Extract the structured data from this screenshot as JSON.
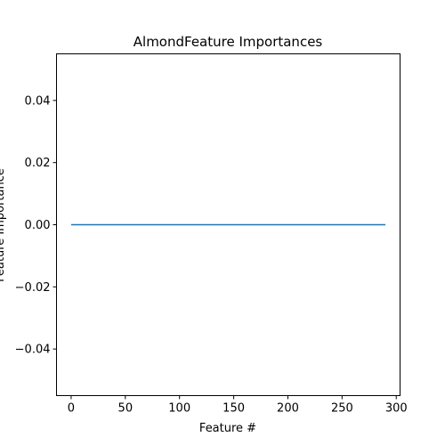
{
  "chart_data": {
    "type": "line",
    "title": "AlmondFeature Importances",
    "xlabel": "Feature #",
    "ylabel": "Feature Importance",
    "xlim": [
      -13.5,
      303.5
    ],
    "ylim": [
      -0.055,
      0.055
    ],
    "xticks": [
      0,
      50,
      100,
      150,
      200,
      250,
      300
    ],
    "yticks": [
      -0.04,
      -0.02,
      0.0,
      0.02,
      0.04
    ],
    "xtick_labels": [
      "0",
      "50",
      "100",
      "150",
      "200",
      "250",
      "300"
    ],
    "ytick_labels": [
      "−0.04",
      "−0.02",
      "0.00",
      "0.02",
      "0.04"
    ],
    "grid": false,
    "series": [
      {
        "color": "#1f77b4",
        "x": [
          0,
          290
        ],
        "y": [
          0,
          0
        ]
      }
    ]
  }
}
